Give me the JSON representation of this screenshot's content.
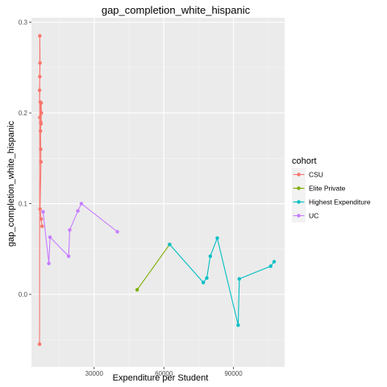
{
  "chart_data": {
    "type": "line",
    "title": "gap_completion_white_hispanic",
    "xlabel": "Expenditure per Student",
    "ylabel": "gap_completion_white_hispanic",
    "xlim": [
      3000,
      112000
    ],
    "ylim": [
      -0.08,
      0.305
    ],
    "xticks": [
      30000,
      60000,
      90000
    ],
    "xtick_labels": [
      "30000",
      "60000",
      "90000"
    ],
    "yticks": [
      0.0,
      0.1,
      0.2,
      0.3
    ],
    "ytick_labels": [
      "0.0",
      "0.1",
      "0.2",
      "0.3"
    ],
    "grid": true,
    "legend_title": "cohort",
    "legend_position": "right",
    "series": [
      {
        "name": "CSU",
        "color": "#F8766D",
        "points": [
          [
            6500,
            -0.055
          ],
          [
            6600,
            0.285
          ],
          [
            6700,
            0.255
          ],
          [
            6600,
            0.24
          ],
          [
            6500,
            0.225
          ],
          [
            6600,
            0.195
          ],
          [
            6800,
            0.212
          ],
          [
            7000,
            0.19
          ],
          [
            7100,
            0.188
          ],
          [
            7200,
            0.211
          ],
          [
            7300,
            0.2
          ],
          [
            6900,
            0.18
          ],
          [
            7000,
            0.16
          ],
          [
            7100,
            0.146
          ],
          [
            6700,
            0.094
          ],
          [
            7200,
            0.083
          ],
          [
            7600,
            0.075
          ]
        ]
      },
      {
        "name": "Elite Private",
        "color": "#7CAE00",
        "points": [
          [
            48500,
            0.005
          ],
          [
            62500,
            0.055
          ]
        ]
      },
      {
        "name": "Highest Expenditure",
        "color": "#00BFC4",
        "points": [
          [
            62500,
            0.055
          ],
          [
            77000,
            0.013
          ],
          [
            78500,
            0.018
          ],
          [
            80000,
            0.042
          ],
          [
            83000,
            0.062
          ],
          [
            92000,
            -0.034
          ],
          [
            92500,
            0.017
          ],
          [
            106000,
            0.031
          ],
          [
            107500,
            0.036
          ]
        ]
      },
      {
        "name": "UC",
        "color": "#C77CFF",
        "points": [
          [
            8000,
            0.091
          ],
          [
            10500,
            0.034
          ],
          [
            11000,
            0.063
          ],
          [
            19000,
            0.042
          ],
          [
            19500,
            0.071
          ],
          [
            23000,
            0.092
          ],
          [
            24500,
            0.1
          ],
          [
            40000,
            0.069
          ]
        ]
      }
    ]
  }
}
